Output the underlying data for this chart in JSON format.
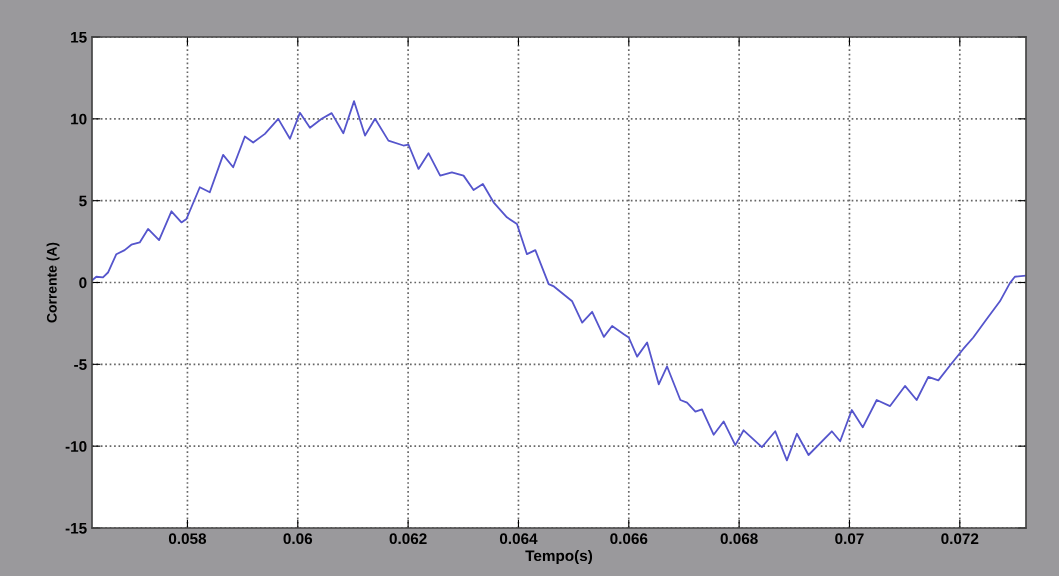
{
  "chart_data": {
    "type": "line",
    "xlabel": "Tempo(s)",
    "ylabel": "Corrente (A)",
    "xlim": [
      0.05627,
      0.0732
    ],
    "ylim": [
      -15,
      15
    ],
    "xticks": [
      0.058,
      0.06,
      0.062,
      0.064,
      0.066,
      0.068,
      0.07,
      0.072
    ],
    "yticks": [
      -15,
      -10,
      -5,
      0,
      5,
      10,
      15
    ],
    "grid": true,
    "line_style": "solid",
    "marker": "none",
    "x": [
      0.056275,
      0.056348,
      0.056469,
      0.05656,
      0.056711,
      0.056862,
      0.056983,
      0.057135,
      0.057286,
      0.057486,
      0.05771,
      0.057891,
      0.057982,
      0.058224,
      0.058405,
      0.058647,
      0.058829,
      0.059041,
      0.059192,
      0.059404,
      0.059646,
      0.059858,
      0.060039,
      0.060221,
      0.060433,
      0.060614,
      0.060826,
      0.06102,
      0.061219,
      0.061401,
      0.061643,
      0.061915,
      0.062006,
      0.062188,
      0.062369,
      0.062581,
      0.062793,
      0.063005,
      0.063186,
      0.063355,
      0.063549,
      0.063791,
      0.063973,
      0.064154,
      0.064306,
      0.064548,
      0.064643,
      0.064974,
      0.065155,
      0.065336,
      0.065548,
      0.065698,
      0.06591,
      0.066,
      0.066151,
      0.066332,
      0.066543,
      0.066694,
      0.066935,
      0.067056,
      0.067207,
      0.067327,
      0.067538,
      0.067719,
      0.067931,
      0.068081,
      0.068413,
      0.068655,
      0.068866,
      0.069047,
      0.069258,
      0.06968,
      0.069831,
      0.070042,
      0.070241,
      0.070494,
      0.070736,
      0.071007,
      0.071218,
      0.07143,
      0.071611,
      0.071822,
      0.072063,
      0.072244,
      0.072485,
      0.072727,
      0.072908,
      0.072998,
      0.073179
    ],
    "series": [
      {
        "color": "#5555cc",
        "values": [
          0.14,
          0.35,
          0.31,
          0.61,
          1.73,
          1.98,
          2.31,
          2.45,
          3.27,
          2.59,
          4.35,
          3.67,
          3.88,
          5.82,
          5.51,
          7.8,
          7.04,
          8.92,
          8.55,
          9.08,
          10.0,
          8.78,
          10.37,
          9.45,
          10.0,
          10.35,
          9.12,
          11.08,
          8.98,
          10.0,
          8.67,
          8.37,
          8.43,
          6.94,
          7.9,
          6.53,
          6.73,
          6.53,
          5.65,
          6.02,
          4.9,
          3.98,
          3.57,
          1.73,
          1.98,
          -0.1,
          -0.24,
          -1.15,
          -2.45,
          -1.79,
          -3.32,
          -2.66,
          -3.16,
          -3.36,
          -4.53,
          -3.66,
          -6.22,
          -5.13,
          -7.18,
          -7.34,
          -7.89,
          -7.75,
          -9.3,
          -8.49,
          -9.94,
          -9.03,
          -10.06,
          -9.09,
          -10.87,
          -9.24,
          -10.54,
          -9.09,
          -9.7,
          -7.79,
          -8.85,
          -7.18,
          -7.55,
          -6.32,
          -7.18,
          -5.77,
          -5.98,
          -5.07,
          -4.06,
          -3.36,
          -2.25,
          -1.15,
          -0.04,
          0.35,
          0.41
        ]
      }
    ]
  }
}
